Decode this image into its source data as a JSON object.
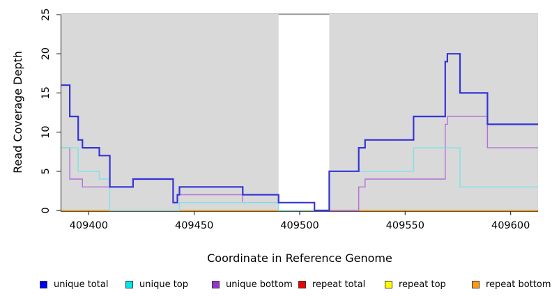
{
  "chart_data": {
    "type": "line",
    "subtype": "step-after",
    "title": "",
    "xlabel": "Coordinate in Reference Genome",
    "ylabel": "Read Coverage Depth",
    "xlim": [
      409387,
      409613
    ],
    "ylim": [
      0,
      25
    ],
    "x_ticks": [
      409400,
      409450,
      409500,
      409550,
      409600
    ],
    "y_ticks": [
      0,
      5,
      10,
      15,
      20,
      25
    ],
    "grid": false,
    "plot_background": "#d9d9d9",
    "gap_region": {
      "x_start": 409490,
      "x_end": 409514,
      "fill": "#ffffff",
      "top_border": "#8d8d8d"
    },
    "series": [
      {
        "name": "repeat total",
        "legend_color": "#ee0000",
        "line_color": "#ee0000",
        "line_width": 1.2,
        "points": [
          [
            409387,
            0
          ]
        ]
      },
      {
        "name": "repeat top",
        "legend_color": "#ffff00",
        "line_color": "#ffff00",
        "line_width": 1.2,
        "points": [
          [
            409387,
            0
          ]
        ]
      },
      {
        "name": "repeat bottom",
        "legend_color": "#ff9912",
        "line_color": "#ffa40e",
        "line_width": 1.6,
        "points": [
          [
            409387,
            0
          ]
        ]
      },
      {
        "name": "unique bottom",
        "legend_color": "#9a32cd",
        "line_color": "#b171d8",
        "line_width": 1.4,
        "points": [
          [
            409387,
            8
          ],
          [
            409391,
            4
          ],
          [
            409397,
            3
          ],
          [
            409421,
            4
          ],
          [
            409440,
            1
          ],
          [
            409442,
            2
          ],
          [
            409473,
            1
          ],
          [
            409507,
            0
          ],
          [
            409528,
            3
          ],
          [
            409531,
            4
          ],
          [
            409569,
            11
          ],
          [
            409570,
            12
          ],
          [
            409589,
            8
          ]
        ]
      },
      {
        "name": "unique top",
        "legend_color": "#00e5ee",
        "line_color": "#7fe2e8",
        "line_width": 1.4,
        "points": [
          [
            409387,
            8
          ],
          [
            409395,
            5
          ],
          [
            409405,
            4
          ],
          [
            409410,
            0
          ],
          [
            409443,
            1
          ],
          [
            409490,
            0
          ],
          [
            409514,
            5
          ],
          [
            409554,
            8
          ],
          [
            409576,
            3
          ]
        ]
      },
      {
        "name": "unique total",
        "legend_color": "#0000ee",
        "line_color": "#3434d9",
        "line_width": 2.2,
        "points": [
          [
            409387,
            16
          ],
          [
            409391,
            12
          ],
          [
            409395,
            9
          ],
          [
            409397,
            8
          ],
          [
            409405,
            7
          ],
          [
            409410,
            3
          ],
          [
            409421,
            4
          ],
          [
            409440,
            1
          ],
          [
            409442,
            2
          ],
          [
            409443,
            3
          ],
          [
            409473,
            2
          ],
          [
            409490,
            1
          ],
          [
            409507,
            0
          ],
          [
            409514,
            5
          ],
          [
            409528,
            8
          ],
          [
            409531,
            9
          ],
          [
            409554,
            12
          ],
          [
            409569,
            19
          ],
          [
            409570,
            20
          ],
          [
            409576,
            15
          ],
          [
            409589,
            11
          ]
        ]
      }
    ]
  },
  "legend": {
    "items": [
      {
        "label": "unique total",
        "color": "#0000ee"
      },
      {
        "label": "unique top",
        "color": "#00e5ee"
      },
      {
        "label": "unique bottom",
        "color": "#9a32cd"
      },
      {
        "label": "repeat total",
        "color": "#ee0000"
      },
      {
        "label": "repeat top",
        "color": "#ffff00"
      },
      {
        "label": "repeat bottom",
        "color": "#ff9912"
      }
    ]
  }
}
